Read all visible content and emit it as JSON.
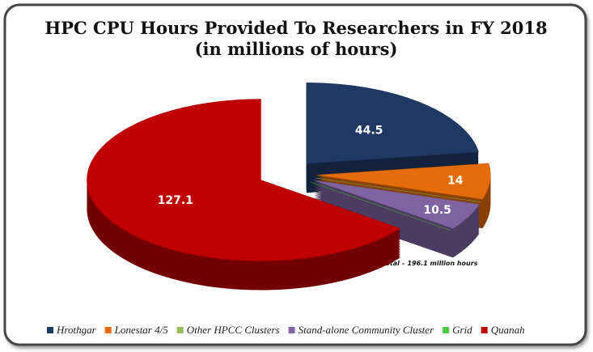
{
  "chart_data": {
    "type": "pie",
    "title": "HPC CPU Hours Provided To Researchers in FY 2018",
    "subtitle": "(in millions of hours)",
    "annotation": "Total – 196.1 million hours",
    "categories": [
      "Hrothgar",
      "Lonestar 4/5",
      "Other HPCC Clusters",
      "Stand-alone Community Cluster",
      "Grid",
      "Quanah"
    ],
    "values": [
      44.5,
      14,
      0,
      10.5,
      0,
      127.1
    ],
    "colors": [
      "#1f3864",
      "#e46c0a",
      "#9bbb59",
      "#8064a2",
      "#4bc94b",
      "#c00000"
    ],
    "legend": "bottom"
  }
}
